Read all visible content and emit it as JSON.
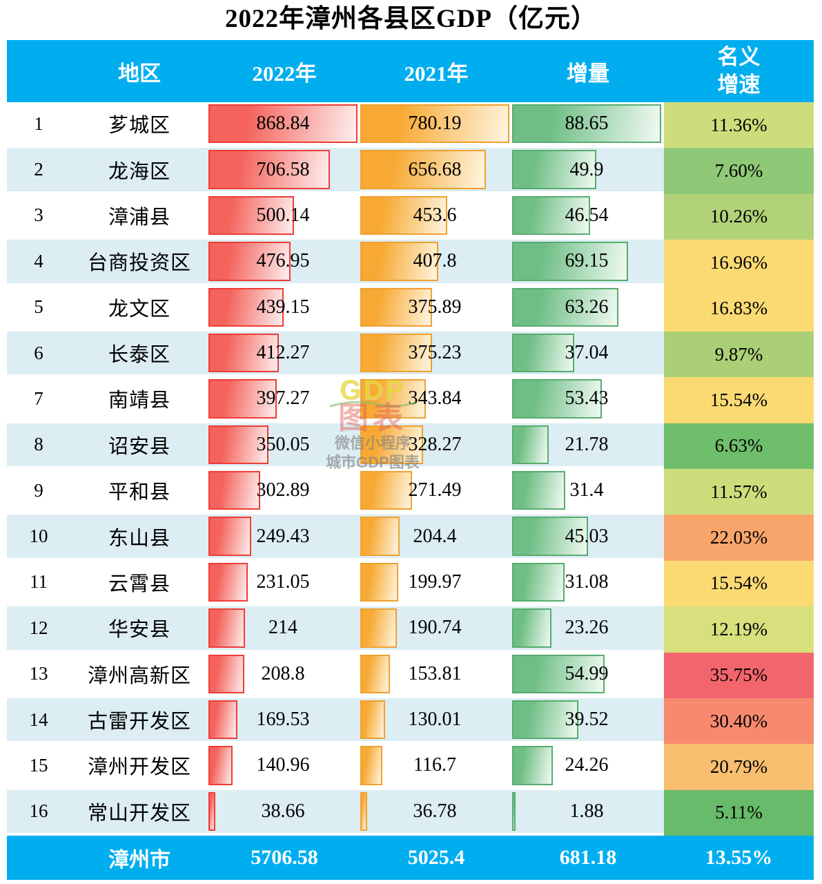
{
  "title": "2022年漳州各县区GDP（亿元）",
  "watermark": {
    "brand": "GDP",
    "brand2": "图表",
    "line3": "微信小程序",
    "line4": "城市GDP图表"
  },
  "header": {
    "region_label": "地区",
    "y2022_label": "2022年",
    "y2021_label": "2021年",
    "delta_label": "增量",
    "growth_label": "名义\n增速"
  },
  "colors": {
    "header_bg": "#00AEEF",
    "footer_bg": "#00AEEF",
    "zebra_bg": "#DCEDF3",
    "bar_2022": "#F4635C",
    "bar_2022_border": "#EE3C36",
    "bar_2021": "#F7A933",
    "bar_2021_border": "#F0A02F",
    "bar_delta": "#6FBE85",
    "bar_delta_border": "#57AC6E"
  },
  "chart_data": {
    "type": "table",
    "title": "2022年漳州各县区GDP（亿元）",
    "columns": [
      "地区",
      "2022年",
      "2021年",
      "增量",
      "名义增速"
    ],
    "bar_scale_max": {
      "y2022": 868.84,
      "y2021": 780.19,
      "delta": 88.65
    },
    "rows": [
      {
        "rank": "1",
        "region": "芗城区",
        "y2022": "868.84",
        "y2021": "780.19",
        "delta": "88.65",
        "growth": "11.36%",
        "v2022": 868.84,
        "v2021": 780.19,
        "vdelta": 88.65,
        "growth_color": "#CEDD7B"
      },
      {
        "rank": "2",
        "region": "龙海区",
        "y2022": "706.58",
        "y2021": "656.68",
        "delta": "49.9",
        "growth": "7.60%",
        "v2022": 706.58,
        "v2021": 656.68,
        "vdelta": 49.9,
        "growth_color": "#8FC877"
      },
      {
        "rank": "3",
        "region": "漳浦县",
        "y2022": "500.14",
        "y2021": "453.6",
        "delta": "46.54",
        "growth": "10.26%",
        "v2022": 500.14,
        "v2021": 453.6,
        "vdelta": 46.54,
        "growth_color": "#B1D278"
      },
      {
        "rank": "4",
        "region": "台商投资区",
        "y2022": "476.95",
        "y2021": "407.8",
        "delta": "69.15",
        "growth": "16.96%",
        "v2022": 476.95,
        "v2021": 407.8,
        "vdelta": 69.15,
        "growth_color": "#FBD973"
      },
      {
        "rank": "5",
        "region": "龙文区",
        "y2022": "439.15",
        "y2021": "375.89",
        "delta": "63.26",
        "growth": "16.83%",
        "v2022": 439.15,
        "v2021": 375.89,
        "vdelta": 63.26,
        "growth_color": "#FBD973"
      },
      {
        "rank": "6",
        "region": "长泰区",
        "y2022": "412.27",
        "y2021": "375.23",
        "delta": "37.04",
        "growth": "9.87%",
        "v2022": 412.27,
        "v2021": 375.23,
        "vdelta": 37.04,
        "growth_color": "#ABCF76"
      },
      {
        "rank": "7",
        "region": "南靖县",
        "y2022": "397.27",
        "y2021": "343.84",
        "delta": "53.43",
        "growth": "15.54%",
        "v2022": 397.27,
        "v2021": 343.84,
        "vdelta": 53.43,
        "growth_color": "#FBD973"
      },
      {
        "rank": "8",
        "region": "诏安县",
        "y2022": "350.05",
        "y2021": "328.27",
        "delta": "21.78",
        "growth": "6.63%",
        "v2022": 350.05,
        "v2021": 328.27,
        "vdelta": 21.78,
        "growth_color": "#6FBE6C"
      },
      {
        "rank": "9",
        "region": "平和县",
        "y2022": "302.89",
        "y2021": "271.49",
        "delta": "31.4",
        "growth": "11.57%",
        "v2022": 302.89,
        "v2021": 271.49,
        "vdelta": 31.4,
        "growth_color": "#CEDD7B"
      },
      {
        "rank": "10",
        "region": "东山县",
        "y2022": "249.43",
        "y2021": "204.4",
        "delta": "45.03",
        "growth": "22.03%",
        "v2022": 249.43,
        "v2021": 204.4,
        "vdelta": 45.03,
        "growth_color": "#F8A56B"
      },
      {
        "rank": "11",
        "region": "云霄县",
        "y2022": "231.05",
        "y2021": "199.97",
        "delta": "31.08",
        "growth": "15.54%",
        "v2022": 231.05,
        "v2021": 199.97,
        "vdelta": 31.08,
        "growth_color": "#FBD973"
      },
      {
        "rank": "12",
        "region": "华安县",
        "y2022": "214",
        "y2021": "190.74",
        "delta": "23.26",
        "growth": "12.19%",
        "v2022": 214,
        "v2021": 190.74,
        "vdelta": 23.26,
        "growth_color": "#D7E07D"
      },
      {
        "rank": "13",
        "region": "漳州高新区",
        "y2022": "208.8",
        "y2021": "153.81",
        "delta": "54.99",
        "growth": "35.75%",
        "v2022": 208.8,
        "v2021": 153.81,
        "vdelta": 54.99,
        "growth_color": "#F2656C"
      },
      {
        "rank": "14",
        "region": "古雷开发区",
        "y2022": "169.53",
        "y2021": "130.01",
        "delta": "39.52",
        "growth": "30.40%",
        "v2022": 169.53,
        "v2021": 130.01,
        "vdelta": 39.52,
        "growth_color": "#F7896F"
      },
      {
        "rank": "15",
        "region": "漳州开发区",
        "y2022": "140.96",
        "y2021": "116.7",
        "delta": "24.26",
        "growth": "20.79%",
        "v2022": 140.96,
        "v2021": 116.7,
        "vdelta": 24.26,
        "growth_color": "#F9BE70"
      },
      {
        "rank": "16",
        "region": "常山开发区",
        "y2022": "38.66",
        "y2021": "36.78",
        "delta": "1.88",
        "growth": "5.11%",
        "v2022": 38.66,
        "v2021": 36.78,
        "vdelta": 1.88,
        "growth_color": "#67BB6A"
      }
    ],
    "total": {
      "region": "漳州市",
      "y2022": "5706.58",
      "y2021": "5025.4",
      "delta": "681.18",
      "growth": "13.55%"
    }
  }
}
